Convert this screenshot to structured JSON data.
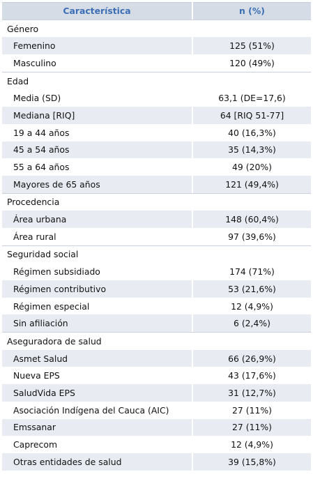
{
  "header": {
    "col1": "Característica",
    "col2": "n (%)"
  },
  "sections": [
    {
      "title": "Género",
      "rows": [
        {
          "label": "Femenino",
          "value": "125 (51%)"
        },
        {
          "label": "Masculino",
          "value": "120 (49%)"
        }
      ]
    },
    {
      "title": "Edad",
      "rows": [
        {
          "label": "Media (SD)",
          "value": "63,1 (DE=17,6)"
        },
        {
          "label": "Mediana [RIQ]",
          "value": "64 [RIQ 51-77]"
        },
        {
          "label": "19 a 44 años",
          "value": "40 (16,3%)"
        },
        {
          "label": "45 a 54 años",
          "value": "35 (14,3%)"
        },
        {
          "label": "55 a 64 años",
          "value": "49 (20%)"
        },
        {
          "label": "Mayores de 65 años",
          "value": "121 (49,4%)"
        }
      ]
    },
    {
      "title": "Procedencia",
      "rows": [
        {
          "label": "Área urbana",
          "value": "148 (60,4%)"
        },
        {
          "label": "Área rural",
          "value": "97 (39,6%)"
        }
      ]
    },
    {
      "title": "Seguridad social",
      "rows": [
        {
          "label": "Régimen subsidiado",
          "value": "174 (71%)"
        },
        {
          "label": "Régimen contributivo",
          "value": "53 (21,6%)"
        },
        {
          "label": "Régimen especial",
          "value": "12 (4,9%)"
        },
        {
          "label": "Sin afiliación",
          "value": "6 (2,4%)"
        }
      ]
    },
    {
      "title": "Aseguradora de salud",
      "rows": [
        {
          "label": "Asmet Salud",
          "value": "66 (26,9%)"
        },
        {
          "label": "Nueva EPS",
          "value": "43 (17,6%)"
        },
        {
          "label": "SaludVida EPS",
          "value": "31 (12,7%)"
        },
        {
          "label": "Asociación Indígena del Cauca (AIC)",
          "value": "27 (11%)"
        },
        {
          "label": "Emssanar",
          "value": "27 (11%)"
        },
        {
          "label": "Caprecom",
          "value": "12 (4,9%)"
        },
        {
          "label": "Otras entidades de salud",
          "value": "39 (15,8%)"
        }
      ]
    }
  ]
}
